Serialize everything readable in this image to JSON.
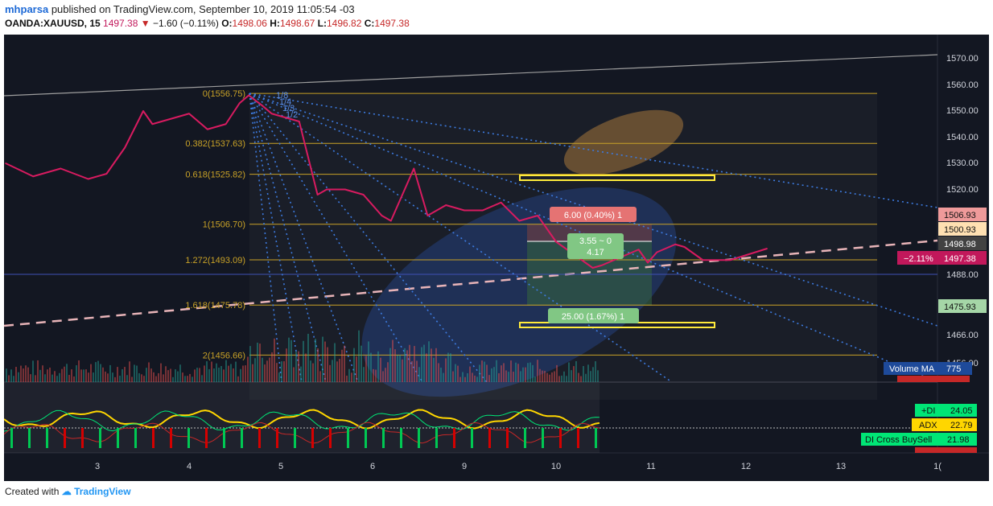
{
  "header": {
    "user": "mhparsa",
    "published": "published on TradingView.com, September 10, 2019 11:05:54 -03",
    "symbol": "OANDA:XAUUSD, 15",
    "last": "1497.38",
    "change": "−1.60 (−0.11%)",
    "o_label": "O:",
    "o_value": "1498.06",
    "h_label": "H:",
    "h_value": "1498.67",
    "l_label": "L:",
    "l_value": "1496.82",
    "c_label": "C:",
    "c_value": "1497.38"
  },
  "footer": {
    "created": "Created with",
    "brand": "TradingView"
  },
  "colors": {
    "background": "#131722",
    "price": "#d81b60",
    "fib": "#c9a227",
    "trendline": "#9e9e9e",
    "dashed": "#e8b4b8",
    "fan": "#3d7be0",
    "adx": "#ffd600",
    "di_plus": "#00e676",
    "di_minus": "#c62828"
  },
  "fib_labels": [
    "0(1556.75)",
    "0.382(1537.63)",
    "0.618(1525.82)",
    "1(1506.70)",
    "1.272(1493.09)",
    "1.618(1475.78)",
    "2(1456.66)"
  ],
  "fan_labels": [
    "1/8",
    "1/4",
    "1/3",
    "1/2"
  ],
  "position": {
    "target": "6.00 (0.40%) 1",
    "ratio_line1": "3.55 ~ 0",
    "ratio_line2": "4.17",
    "stop": "25.00 (1.67%) 1"
  },
  "price_axis": {
    "ticks": [
      "1570.00",
      "1560.00",
      "1550.00",
      "1540.00",
      "1530.00",
      "1520.00",
      "1488.00",
      "1466.00",
      "1456.00"
    ]
  },
  "price_tags": [
    {
      "label": "1506.93",
      "bg": "#ef9a9a",
      "fg": "#111111"
    },
    {
      "label": "1500.93",
      "bg": "#ffe0b2",
      "fg": "#111111"
    },
    {
      "label": "1498.98",
      "bg": "#424242",
      "fg": "#ffffff"
    },
    {
      "label": "−2.11%",
      "bg": "#c2185b",
      "fg": "#ffffff"
    },
    {
      "label": "1497.38",
      "bg": "#c2185b",
      "fg": "#ffffff"
    },
    {
      "label": "1475.93",
      "bg": "#a5d6a7",
      "fg": "#111111"
    }
  ],
  "volume_ma": {
    "label": "Volume MA",
    "value": "775"
  },
  "indicator_tags": [
    {
      "label": "+DI",
      "value": "24.05",
      "bg": "#00e676"
    },
    {
      "label": "ADX",
      "value": "22.79",
      "bg": "#ffd600"
    },
    {
      "label": "DI Cross BuySell",
      "value": "21.98",
      "bg": "#00e676"
    }
  ],
  "chart_data": {
    "type": "line",
    "title": "OANDA:XAUUSD, 15",
    "x_ticks": [
      "3",
      "4",
      "5",
      "6",
      "9",
      "10",
      "11",
      "12",
      "13",
      "1("
    ],
    "series": [
      {
        "name": "XAUUSD",
        "x": [
          2.0,
          2.3,
          2.6,
          2.9,
          3.1,
          3.3,
          3.5,
          3.6,
          3.8,
          4.0,
          4.2,
          4.4,
          4.55,
          4.65,
          4.8,
          4.9,
          5.0,
          5.2,
          5.4,
          5.5,
          5.7,
          5.9,
          6.1,
          6.2,
          6.4,
          6.45,
          6.6,
          6.8,
          7.0,
          7.2,
          7.4,
          7.6,
          7.8,
          8.0,
          8.2,
          8.4,
          8.5,
          8.7,
          8.9,
          9.0,
          9.1,
          9.3,
          9.4,
          9.6,
          9.9,
          10.3
        ],
        "values": [
          1530,
          1525,
          1528,
          1524,
          1526,
          1536,
          1550,
          1545,
          1547,
          1549,
          1543,
          1545,
          1553,
          1556,
          1552,
          1549,
          1548,
          1546,
          1518,
          1520,
          1520,
          1518,
          1510,
          1508,
          1524,
          1528,
          1510,
          1514,
          1512,
          1512,
          1515,
          1508,
          1510,
          1500,
          1495,
          1490,
          1491,
          1494,
          1497,
          1492,
          1496,
          1499,
          1498,
          1493,
          1493,
          1497.38
        ]
      }
    ],
    "y_range": [
      1450,
      1575
    ],
    "fib_levels": [
      1556.75,
      1537.63,
      1525.82,
      1506.7,
      1493.09,
      1475.78,
      1456.66
    ],
    "position_levels": {
      "entry": 1500.93,
      "target": 1506.93,
      "stop": 1475.93
    },
    "indicators": {
      "di_plus": 24.05,
      "adx": 22.79,
      "di_cross": 21.98
    }
  }
}
